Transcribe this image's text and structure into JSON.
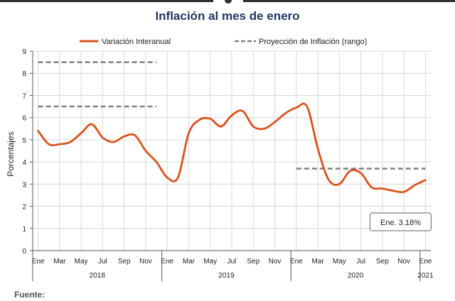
{
  "chart_data": {
    "type": "line",
    "title": "Inflación al mes de enero",
    "xlabel": "",
    "ylabel": "Porcentajes",
    "ylim": [
      0,
      9
    ],
    "yticks": [
      "0",
      "1",
      "2",
      "3",
      "4",
      "5",
      "6",
      "7",
      "8",
      "9"
    ],
    "x_month_labels": [
      "Ene",
      "Mar",
      "May",
      "Jul",
      "Sep",
      "Nov",
      "Ene",
      "Mar",
      "May",
      "Jul",
      "Sep",
      "Nov",
      "Ene",
      "Mar",
      "May",
      "Jul",
      "Sep",
      "Nov",
      "Ene"
    ],
    "x_year_labels": [
      "2018",
      "2019",
      "2020",
      "2021"
    ],
    "grid": true,
    "legend_position": "top",
    "series": [
      {
        "name": "Variación Interanual",
        "style": "solid",
        "color": "#d9531e",
        "x": [
          "2018-01",
          "2018-02",
          "2018-03",
          "2018-04",
          "2018-05",
          "2018-06",
          "2018-07",
          "2018-08",
          "2018-09",
          "2018-10",
          "2018-11",
          "2018-12",
          "2019-01",
          "2019-02",
          "2019-03",
          "2019-04",
          "2019-05",
          "2019-06",
          "2019-07",
          "2019-08",
          "2019-09",
          "2019-10",
          "2019-11",
          "2019-12",
          "2020-01",
          "2020-02",
          "2020-03",
          "2020-04",
          "2020-05",
          "2020-06",
          "2020-07",
          "2020-08",
          "2020-09",
          "2020-10",
          "2020-11",
          "2020-12",
          "2021-01"
        ],
        "values": [
          5.4,
          4.8,
          4.8,
          4.9,
          5.3,
          5.7,
          5.1,
          4.9,
          5.15,
          5.2,
          4.5,
          4.0,
          3.3,
          3.3,
          5.3,
          5.9,
          5.95,
          5.6,
          6.1,
          6.3,
          5.6,
          5.5,
          5.8,
          6.2,
          6.45,
          6.5,
          4.6,
          3.2,
          3.0,
          3.6,
          3.5,
          2.85,
          2.8,
          2.7,
          2.65,
          2.95,
          3.18
        ]
      },
      {
        "name": "Proyección de Inflación (rango)",
        "style": "dashed",
        "color": "#808080",
        "segments": [
          {
            "x": [
              "2018-01",
              "2018-12"
            ],
            "values": [
              8.5,
              8.5
            ]
          },
          {
            "x": [
              "2018-01",
              "2018-12"
            ],
            "values": [
              6.5,
              6.5
            ]
          },
          {
            "x": [
              "2020-01",
              "2021-01"
            ],
            "values": [
              3.7,
              3.7
            ]
          }
        ]
      }
    ],
    "annotation": {
      "text": "Ene. 3.18%",
      "x": "2021-01",
      "value": 3.18
    }
  },
  "source_label": "Fuente:",
  "colors": {
    "title": "#1f3864",
    "grid": "#d9d9d9",
    "axis": "#595959"
  }
}
